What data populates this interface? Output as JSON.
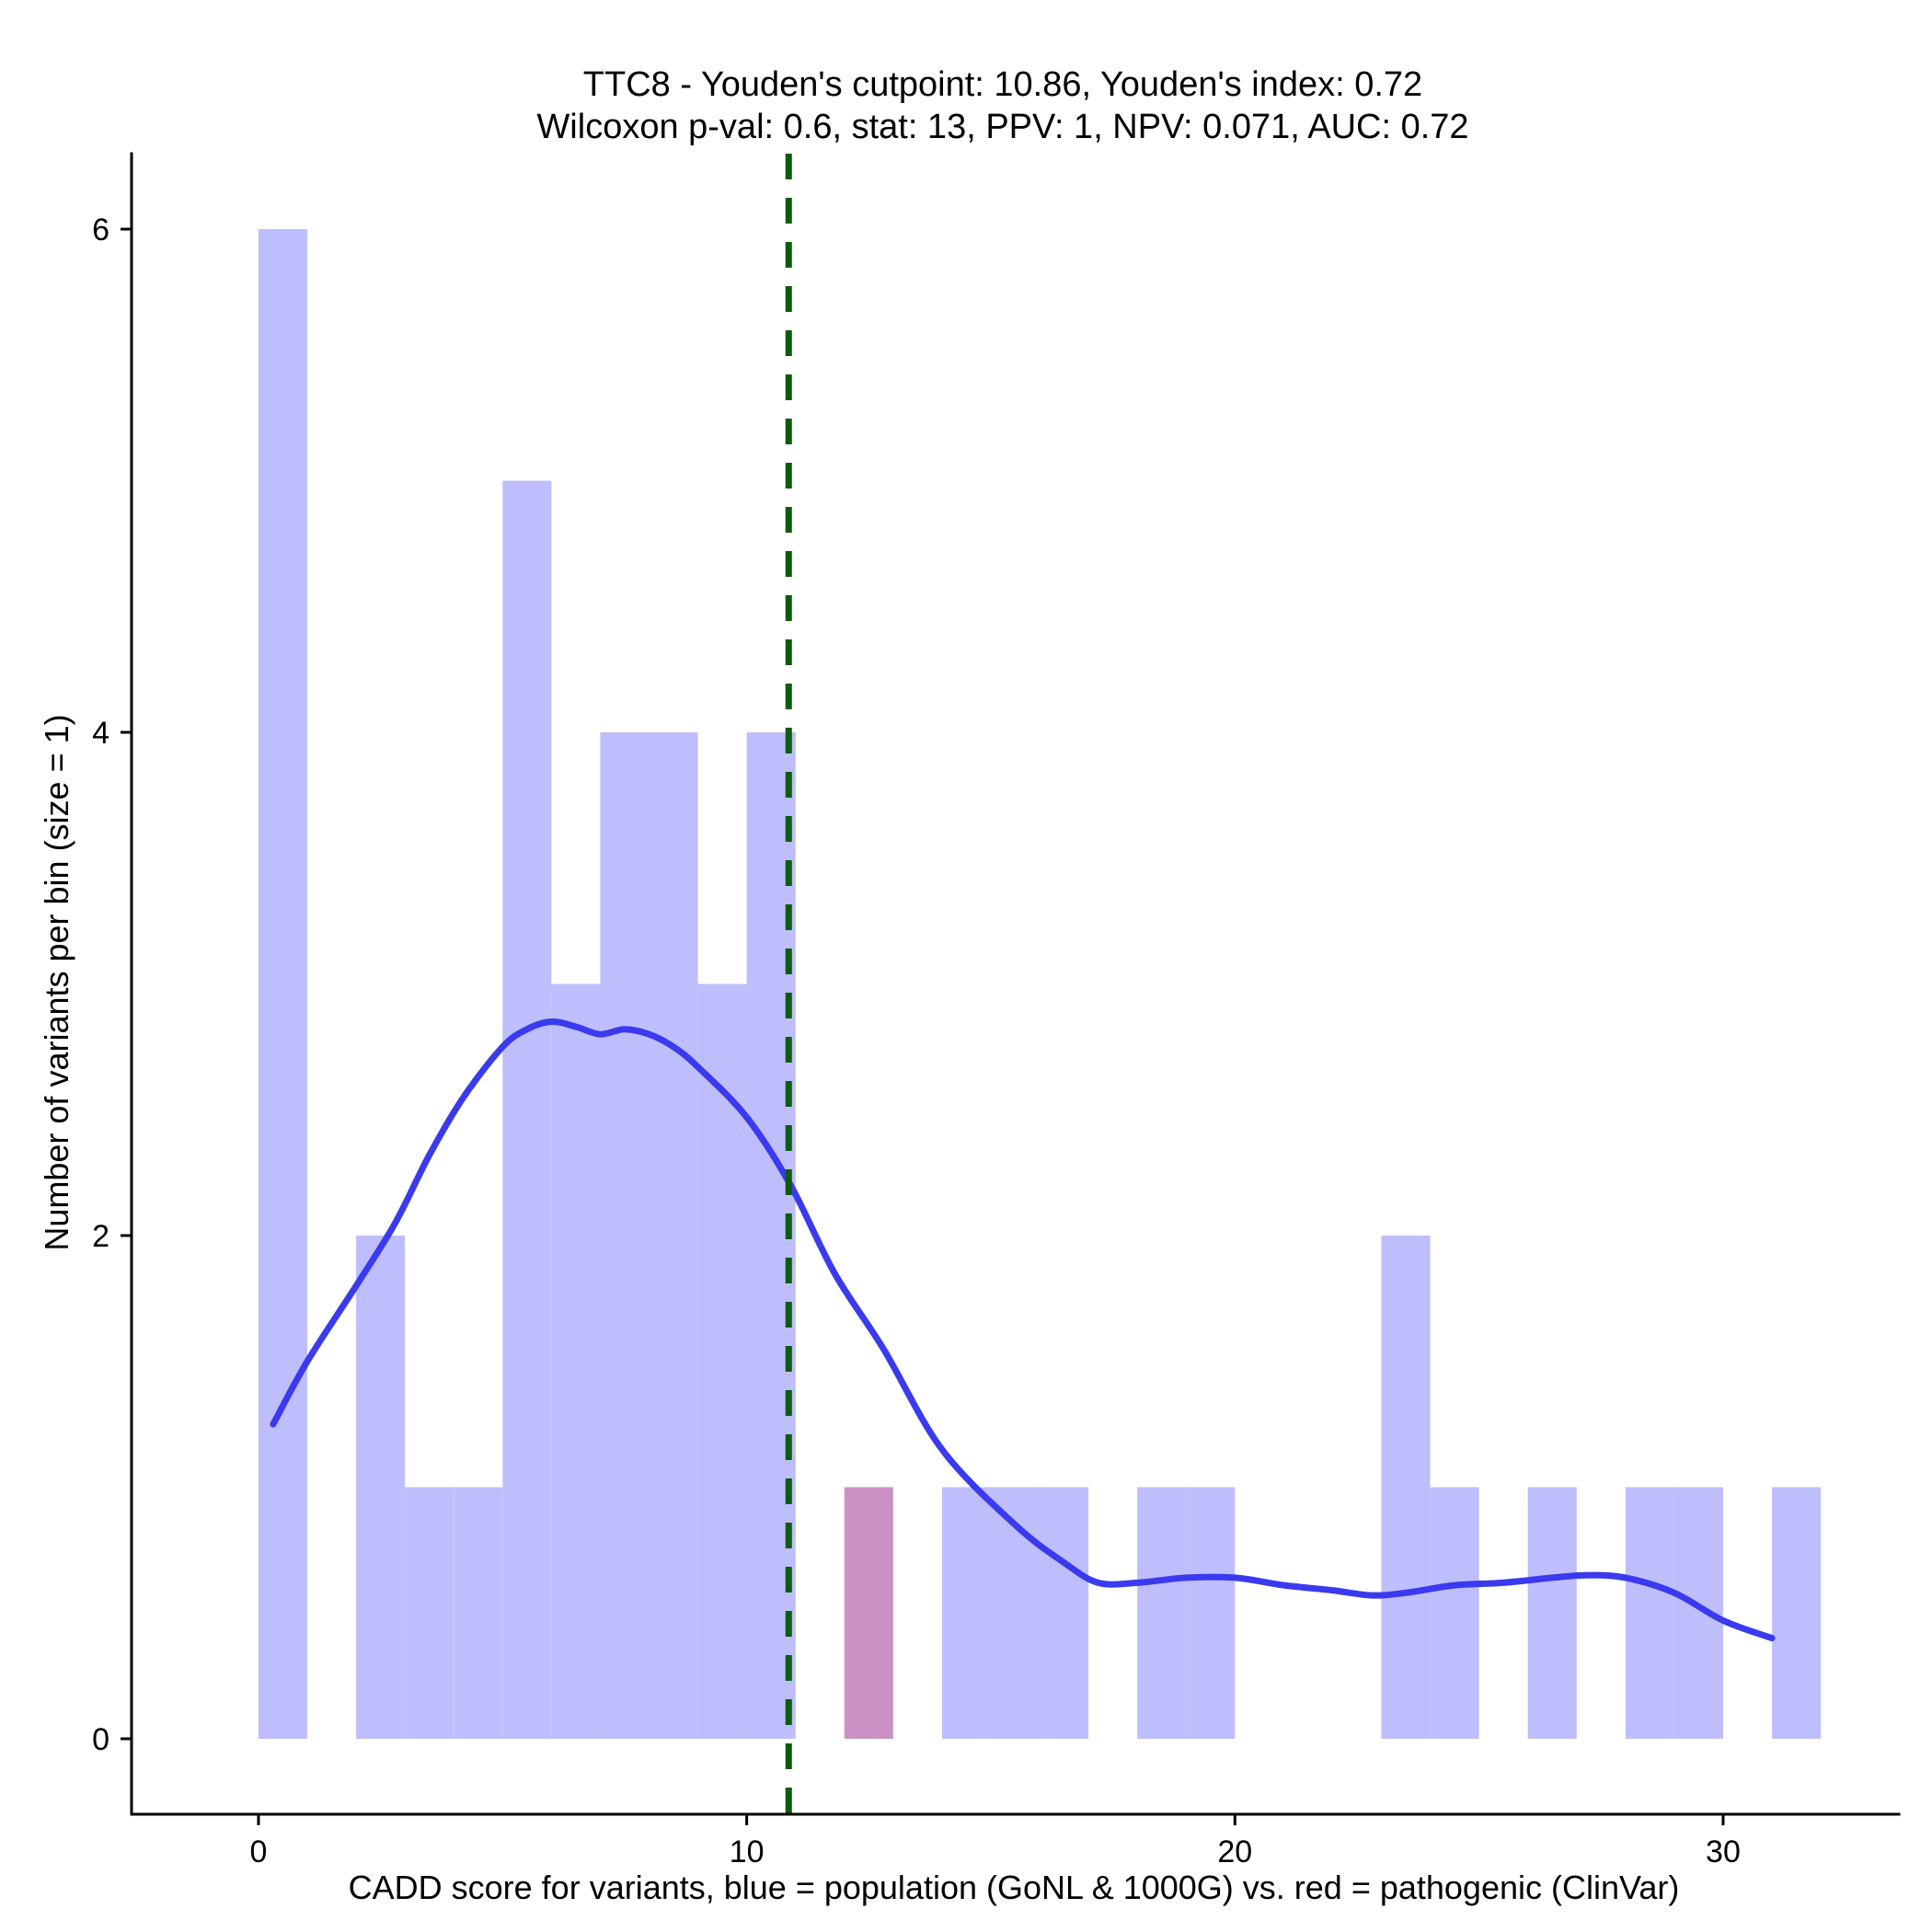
{
  "chart_data": {
    "type": "histogram",
    "title_line1": "TTC8 - Youden's cutpoint: 10.86, Youden's index: 0.72",
    "title_line2": "Wilcoxon p-val: 0.6, stat: 13, PPV: 1, NPV: 0.071, AUC: 0.72",
    "xlabel": "CADD score for variants, blue = population (GoNL & 1000G) vs. red = pathogenic (ClinVar)",
    "ylabel": "Number of variants per bin (size = 1)",
    "xlim": [
      -2.6,
      33.6
    ],
    "ylim": [
      -0.3,
      6.3
    ],
    "x_ticks": [
      0,
      10,
      20,
      30
    ],
    "x_tick_labels": [
      "0",
      "10",
      "20",
      "30"
    ],
    "y_ticks": [
      0,
      2,
      4,
      6
    ],
    "y_tick_labels": [
      "0",
      "2",
      "4",
      "6"
    ],
    "bin_width": 1,
    "cutpoint": 10.86,
    "colors": {
      "population": "#bebefc",
      "pathogenic": "#cb90c4",
      "density": "#3a3aee",
      "cutpoint": "#0b5c0b",
      "axis": "#000000"
    },
    "series": [
      {
        "name": "population",
        "bins": [
          {
            "start": 0,
            "count": 6
          },
          {
            "start": 2,
            "count": 2
          },
          {
            "start": 3,
            "count": 1
          },
          {
            "start": 4,
            "count": 1
          },
          {
            "start": 5,
            "count": 5
          },
          {
            "start": 6,
            "count": 3
          },
          {
            "start": 7,
            "count": 4
          },
          {
            "start": 8,
            "count": 4
          },
          {
            "start": 9,
            "count": 3
          },
          {
            "start": 10,
            "count": 4
          },
          {
            "start": 14,
            "count": 1
          },
          {
            "start": 15,
            "count": 1
          },
          {
            "start": 16,
            "count": 1
          },
          {
            "start": 18,
            "count": 1
          },
          {
            "start": 19,
            "count": 1
          },
          {
            "start": 23,
            "count": 2
          },
          {
            "start": 24,
            "count": 1
          },
          {
            "start": 26,
            "count": 1
          },
          {
            "start": 28,
            "count": 1
          },
          {
            "start": 29,
            "count": 1
          },
          {
            "start": 31,
            "count": 1
          }
        ]
      },
      {
        "name": "pathogenic",
        "bins": [
          {
            "start": 12,
            "count": 1
          }
        ]
      }
    ],
    "density_curve": {
      "x": [
        0.3,
        1,
        2,
        2.8,
        3.5,
        4.2,
        5,
        5.5,
        6,
        6.5,
        7,
        7.5,
        8,
        8.5,
        9,
        10,
        10.9,
        11.8,
        12.8,
        14,
        15.5,
        16.5,
        17.2,
        18,
        19,
        20,
        21,
        22,
        22.8,
        23.5,
        24.5,
        25.5,
        26.5,
        27.2,
        28,
        29,
        30,
        31
      ],
      "y": [
        1.25,
        1.5,
        1.8,
        2.05,
        2.32,
        2.55,
        2.75,
        2.82,
        2.85,
        2.83,
        2.8,
        2.82,
        2.8,
        2.75,
        2.67,
        2.47,
        2.2,
        1.85,
        1.55,
        1.15,
        0.85,
        0.7,
        0.62,
        0.62,
        0.64,
        0.64,
        0.61,
        0.59,
        0.57,
        0.58,
        0.61,
        0.62,
        0.64,
        0.65,
        0.64,
        0.58,
        0.47,
        0.4
      ]
    }
  }
}
